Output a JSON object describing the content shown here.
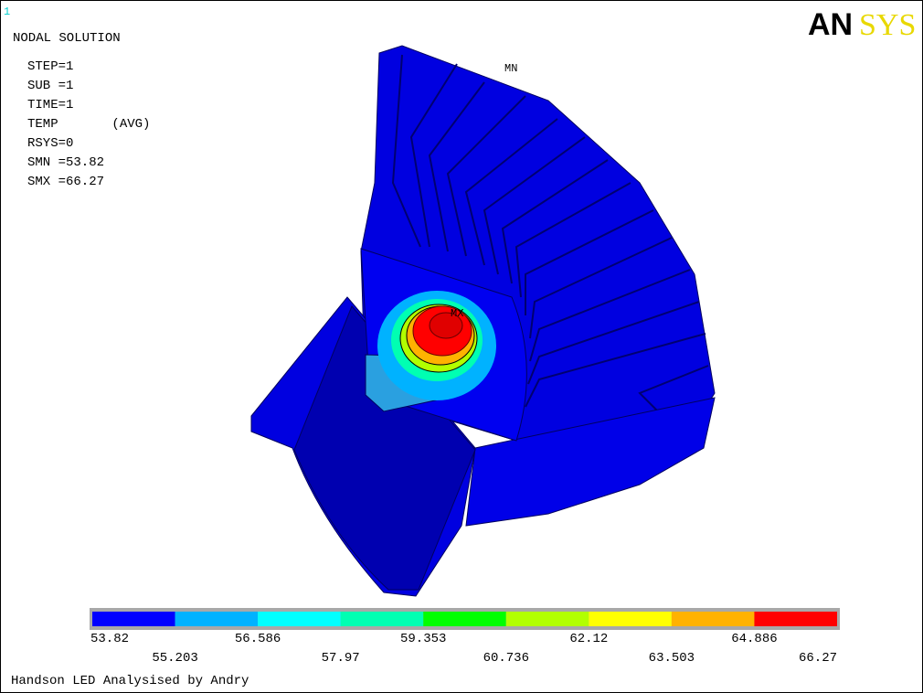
{
  "header": {
    "window_number": "1",
    "title": "NODAL SOLUTION",
    "info": [
      "STEP=1",
      "SUB =1",
      "TIME=1",
      "TEMP       (AVG)",
      "RSYS=0",
      "SMN =53.82",
      "SMX =66.27"
    ],
    "logo_left": "AN",
    "logo_right": "SYS"
  },
  "model": {
    "min_label": "MN",
    "max_label": "MX"
  },
  "legend": {
    "colors": [
      "#0000ff",
      "#00b2ff",
      "#00ffff",
      "#00ffb2",
      "#00ff00",
      "#b2ff00",
      "#ffff00",
      "#ffb200",
      "#ff0000"
    ],
    "labels": [
      "53.82",
      "55.203",
      "56.586",
      "57.97",
      "59.353",
      "60.736",
      "62.12",
      "63.503",
      "64.886",
      "66.27"
    ]
  },
  "footer": "Handson LED Analysised by Andry"
}
